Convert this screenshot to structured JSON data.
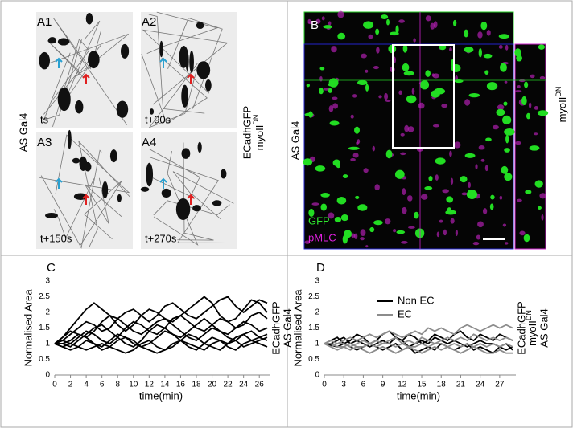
{
  "panels": {
    "a": {
      "labels": [
        "A1",
        "A2",
        "A3",
        "A4"
      ],
      "times": [
        "ts",
        "t+90s",
        "t+150s",
        "t+270s"
      ],
      "left_label": "AS Gal4",
      "right_label": "ECadhGFP",
      "right_label_2": "myoII",
      "right_label_2_sup": "DN"
    },
    "b": {
      "label": "B",
      "left_label": "AS Gal4",
      "right_label": "myoII",
      "right_label_sup": "DN",
      "channels": [
        "GFP",
        "pMLC"
      ]
    }
  },
  "chart_data": [
    {
      "type": "line",
      "panel_label": "C",
      "y_label": "Normalised Area",
      "x_label": "time(min)",
      "side_labels": [
        "ECadhGFP",
        "AS Gal4"
      ],
      "x": [
        0,
        1,
        2,
        3,
        4,
        5,
        6,
        7,
        8,
        9,
        10,
        11,
        12,
        13,
        14,
        15,
        16,
        17,
        18,
        19,
        20,
        21,
        22,
        23,
        24,
        25,
        26,
        27
      ],
      "xlim": [
        0,
        27
      ],
      "xticks": [
        0,
        2,
        4,
        6,
        8,
        10,
        12,
        14,
        16,
        18,
        20,
        22,
        24,
        26
      ],
      "ylim": [
        0,
        3
      ],
      "yticks": [
        0,
        0.5,
        1,
        1.5,
        2,
        2.5,
        3
      ],
      "series": [
        {
          "color": "#000000",
          "lines": [
            [
              1,
              1.2,
              1.5,
              1.8,
              2.1,
              2.3,
              2.1,
              1.9,
              1.6,
              1.4,
              1.6,
              1.9,
              2.1,
              2.0,
              1.8,
              1.7,
              1.9,
              2.1,
              2.3,
              2.5,
              2.3,
              1.9,
              1.7,
              1.8,
              2.1,
              2.4,
              2.3,
              2.0
            ],
            [
              1,
              1.1,
              1.3,
              1.5,
              1.7,
              1.6,
              1.4,
              1.5,
              1.8,
              2.0,
              2.1,
              1.9,
              1.7,
              1.9,
              2.2,
              2.3,
              2.1,
              1.9,
              1.8,
              2.0,
              2.2,
              2.4,
              2.5,
              2.2,
              2.0,
              2.2,
              2.4,
              2.3
            ],
            [
              1,
              0.9,
              1.0,
              1.2,
              1.4,
              1.3,
              1.1,
              1.0,
              1.2,
              1.5,
              1.7,
              1.6,
              1.4,
              1.3,
              1.5,
              1.8,
              1.9,
              1.7,
              1.5,
              1.4,
              1.6,
              1.8,
              1.7,
              1.5,
              1.6,
              1.9,
              2.0,
              1.8
            ],
            [
              1,
              1.0,
              0.9,
              1.1,
              1.3,
              1.5,
              1.6,
              1.4,
              1.2,
              1.0,
              0.9,
              1.1,
              1.4,
              1.6,
              1.5,
              1.3,
              1.2,
              1.4,
              1.6,
              1.8,
              1.6,
              1.4,
              1.3,
              1.5,
              1.7,
              1.6,
              1.4,
              1.5
            ],
            [
              1,
              0.9,
              0.8,
              0.9,
              1.1,
              1.0,
              0.9,
              1.1,
              1.3,
              1.2,
              1.0,
              0.9,
              1.0,
              1.2,
              1.4,
              1.3,
              1.1,
              0.9,
              0.8,
              1.0,
              1.2,
              1.1,
              1.0,
              1.2,
              1.3,
              1.1,
              1.2,
              1.3
            ],
            [
              1,
              1.1,
              1.0,
              0.9,
              0.8,
              0.9,
              1.0,
              0.9,
              0.8,
              0.7,
              0.8,
              1.0,
              1.1,
              0.9,
              0.8,
              0.9,
              1.1,
              1.3,
              1.2,
              1.0,
              0.9,
              0.8,
              1.0,
              1.1,
              0.9,
              1.0,
              1.1,
              1.2
            ],
            [
              1,
              1.2,
              1.4,
              1.3,
              1.2,
              1.4,
              1.7,
              1.9,
              1.8,
              1.6,
              1.4,
              1.3,
              1.5,
              1.7,
              1.8,
              1.6,
              1.4,
              1.2,
              1.1,
              1.3,
              1.5,
              1.4,
              1.2,
              1.1,
              1.3,
              1.4,
              1.2,
              1.1
            ],
            [
              1,
              1.0,
              1.1,
              1.3,
              1.2,
              1.0,
              0.8,
              0.9,
              1.1,
              1.2,
              1.1,
              0.9,
              0.8,
              0.7,
              0.8,
              1.0,
              1.1,
              1.0,
              0.9,
              0.8,
              1.0,
              1.1,
              0.9,
              0.8,
              1.0,
              1.1,
              1.0,
              0.9
            ]
          ]
        }
      ]
    },
    {
      "type": "line",
      "panel_label": "D",
      "y_label": "Normalised Area",
      "x_label": "time(min)",
      "side_labels": [
        "ECadhGFP",
        {
          "text": "myoII",
          "sup": "DN"
        },
        "AS Gal4"
      ],
      "x": [
        0,
        1,
        2,
        3,
        4,
        5,
        6,
        7,
        8,
        9,
        10,
        11,
        12,
        13,
        14,
        15,
        16,
        17,
        18,
        19,
        20,
        21,
        22,
        23,
        24,
        25,
        26,
        27,
        28,
        29
      ],
      "xlim": [
        0,
        29
      ],
      "xticks": [
        0,
        3,
        6,
        9,
        12,
        15,
        18,
        21,
        24,
        27
      ],
      "ylim": [
        0,
        3
      ],
      "yticks": [
        0,
        0.5,
        1,
        1.5,
        2,
        2.5,
        3
      ],
      "series": [
        {
          "name": "Non EC",
          "color": "#000000",
          "lines": [
            [
              1,
              1.1,
              1.2,
              1.0,
              1.1,
              1.3,
              1.2,
              1.0,
              1.1,
              1.3,
              1.4,
              1.2,
              1.1,
              1.3,
              1.2,
              1.0,
              1.1,
              1.3,
              1.2,
              1.1,
              1.3,
              1.4,
              1.2,
              1.1,
              1.3,
              1.2,
              1.1,
              1.3,
              1.2,
              1.1
            ],
            [
              1,
              0.95,
              0.9,
              1.0,
              0.9,
              0.8,
              0.9,
              1.0,
              0.9,
              0.8,
              0.9,
              1.0,
              0.8,
              0.9,
              0.7,
              0.8,
              0.9,
              0.8,
              1.0,
              0.9,
              0.8,
              0.9,
              1.0,
              0.8,
              0.9,
              0.8,
              0.7,
              0.9,
              0.8,
              0.9
            ],
            [
              1,
              1.0,
              1.1,
              1.2,
              1.0,
              1.1,
              1.0,
              0.9,
              1.0,
              1.1,
              1.0,
              1.2,
              1.1,
              0.9,
              1.0,
              1.1,
              1.0,
              1.2,
              1.1,
              1.0,
              1.1,
              1.0,
              0.9,
              1.0,
              1.1,
              1.0,
              1.0,
              0.9,
              1.0,
              0.8
            ]
          ]
        },
        {
          "name": "EC",
          "color": "#8c8c8c",
          "lines": [
            [
              1,
              1.1,
              1.0,
              1.1,
              1.2,
              1.1,
              1.2,
              1.3,
              1.2,
              1.3,
              1.4,
              1.3,
              1.2,
              1.3,
              1.4,
              1.3,
              1.5,
              1.4,
              1.5,
              1.4,
              1.3,
              1.5,
              1.6,
              1.5,
              1.4,
              1.5,
              1.6,
              1.5,
              1.6,
              1.5
            ],
            [
              1,
              0.9,
              1.0,
              1.0,
              0.9,
              1.0,
              1.1,
              1.0,
              1.1,
              1.0,
              1.1,
              1.2,
              1.0,
              1.1,
              1.0,
              1.2,
              1.1,
              1.0,
              1.1,
              1.2,
              1.1,
              1.2,
              1.1,
              1.3,
              1.2,
              1.1,
              1.2,
              1.1,
              1.2,
              1.1
            ],
            [
              1,
              0.9,
              0.8,
              0.9,
              0.8,
              0.9,
              0.8,
              0.7,
              0.8,
              0.9,
              0.8,
              0.7,
              0.8,
              0.9,
              0.8,
              0.7,
              0.8,
              0.9,
              0.8,
              0.9,
              0.8,
              0.7,
              0.8,
              0.9,
              0.8,
              0.7,
              0.7,
              0.8,
              0.7,
              0.7
            ],
            [
              1,
              1.0,
              0.9,
              0.9,
              1.0,
              0.9,
              0.9,
              1.0,
              0.9,
              1.0,
              1.0,
              0.9,
              1.0,
              0.9,
              0.9,
              1.0,
              0.9,
              1.0,
              1.0,
              0.9,
              1.0,
              0.9,
              1.0,
              0.9,
              1.0,
              0.9,
              1.0,
              0.9,
              1.0,
              0.9
            ]
          ]
        }
      ]
    }
  ]
}
